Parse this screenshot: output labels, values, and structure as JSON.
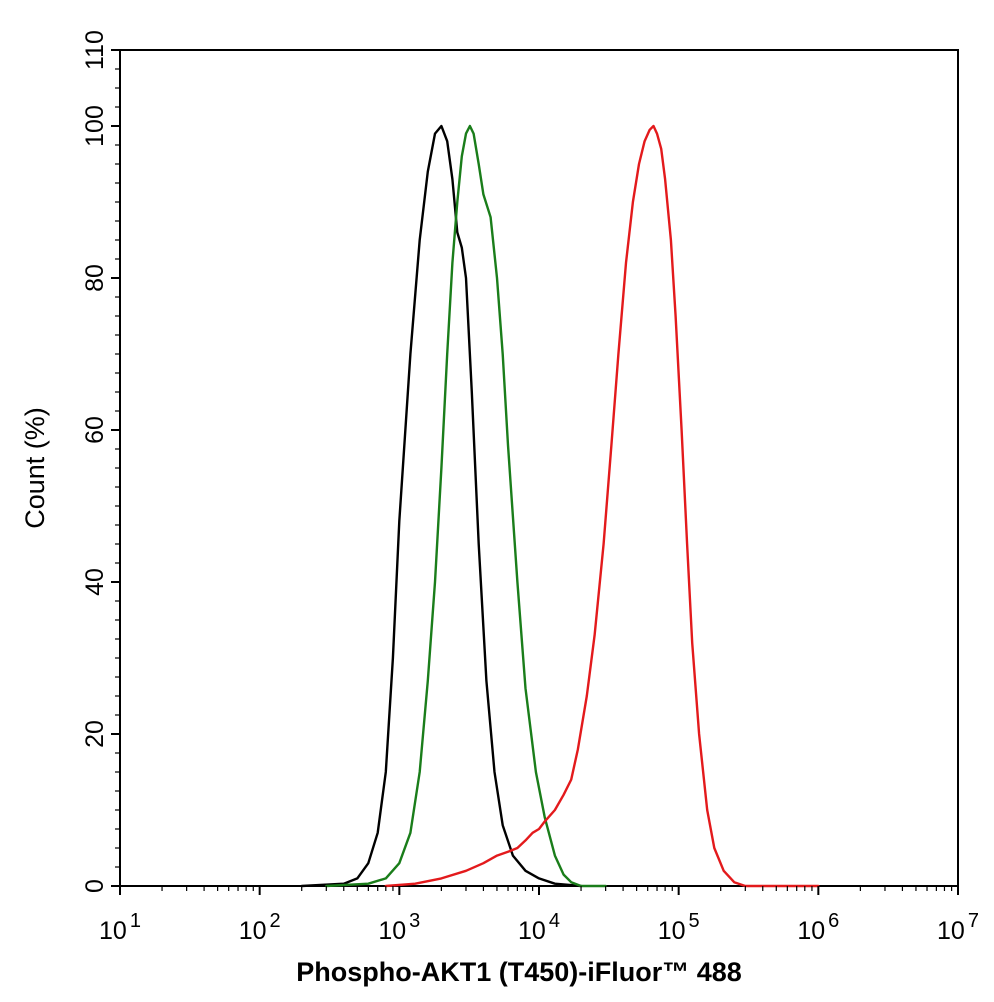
{
  "chart_data": {
    "type": "line",
    "xlabel": "Phospho-AKT1 (T450)-iFluor™ 488",
    "ylabel": "Count  (%)",
    "x_scale": "log",
    "xlim": [
      10,
      10000000
    ],
    "ylim": [
      0,
      110
    ],
    "x_ticks": [
      {
        "value": 10,
        "base": "10",
        "exp": "1"
      },
      {
        "value": 100,
        "base": "10",
        "exp": "2"
      },
      {
        "value": 1000,
        "base": "10",
        "exp": "3"
      },
      {
        "value": 10000,
        "base": "10",
        "exp": "4"
      },
      {
        "value": 100000,
        "base": "10",
        "exp": "5"
      },
      {
        "value": 1000000,
        "base": "10",
        "exp": "6"
      },
      {
        "value": 10000000,
        "base": "10",
        "exp": "7"
      }
    ],
    "y_ticks": [
      "0",
      "20",
      "40",
      "60",
      "80",
      "100",
      "110"
    ],
    "grid": false,
    "legend": "none",
    "series": [
      {
        "color": "#000000",
        "points": [
          [
            200,
            0
          ],
          [
            400,
            0.3
          ],
          [
            500,
            1
          ],
          [
            600,
            3
          ],
          [
            700,
            7
          ],
          [
            800,
            15
          ],
          [
            900,
            30
          ],
          [
            1000,
            48
          ],
          [
            1200,
            70
          ],
          [
            1400,
            85
          ],
          [
            1600,
            94
          ],
          [
            1800,
            99
          ],
          [
            2000,
            100
          ],
          [
            2200,
            98
          ],
          [
            2400,
            93
          ],
          [
            2600,
            86
          ],
          [
            2800,
            84
          ],
          [
            3000,
            80
          ],
          [
            3300,
            65
          ],
          [
            3700,
            45
          ],
          [
            4200,
            27
          ],
          [
            4800,
            15
          ],
          [
            5500,
            8
          ],
          [
            6500,
            4
          ],
          [
            8000,
            2
          ],
          [
            10000,
            1
          ],
          [
            13000,
            0.3
          ],
          [
            20000,
            0
          ]
        ]
      },
      {
        "color": "#1a7d1a",
        "points": [
          [
            300,
            0
          ],
          [
            600,
            0.3
          ],
          [
            800,
            1
          ],
          [
            1000,
            3
          ],
          [
            1200,
            7
          ],
          [
            1400,
            15
          ],
          [
            1600,
            27
          ],
          [
            1800,
            40
          ],
          [
            2000,
            55
          ],
          [
            2200,
            70
          ],
          [
            2400,
            82
          ],
          [
            2600,
            90
          ],
          [
            2800,
            96
          ],
          [
            3000,
            99
          ],
          [
            3200,
            100
          ],
          [
            3400,
            99
          ],
          [
            3700,
            95
          ],
          [
            4000,
            91
          ],
          [
            4500,
            88
          ],
          [
            5000,
            80
          ],
          [
            5500,
            70
          ],
          [
            6000,
            58
          ],
          [
            7000,
            40
          ],
          [
            8000,
            26
          ],
          [
            9500,
            15
          ],
          [
            11000,
            9
          ],
          [
            13000,
            4
          ],
          [
            15000,
            1.5
          ],
          [
            17000,
            0.5
          ],
          [
            20000,
            0
          ],
          [
            30000,
            0
          ]
        ]
      },
      {
        "color": "#e31a1c",
        "points": [
          [
            800,
            0
          ],
          [
            1300,
            0.3
          ],
          [
            2000,
            1
          ],
          [
            3000,
            2
          ],
          [
            4000,
            3
          ],
          [
            5000,
            4
          ],
          [
            6000,
            4.5
          ],
          [
            7000,
            5
          ],
          [
            8000,
            6
          ],
          [
            9000,
            7
          ],
          [
            10000,
            7.5
          ],
          [
            11000,
            8.5
          ],
          [
            13000,
            10
          ],
          [
            15000,
            12
          ],
          [
            17000,
            14
          ],
          [
            19000,
            18
          ],
          [
            22000,
            25
          ],
          [
            25000,
            33
          ],
          [
            29000,
            45
          ],
          [
            33000,
            58
          ],
          [
            37000,
            70
          ],
          [
            42000,
            82
          ],
          [
            47000,
            90
          ],
          [
            52000,
            95
          ],
          [
            57000,
            98
          ],
          [
            62000,
            99.5
          ],
          [
            66000,
            100
          ],
          [
            70000,
            99
          ],
          [
            75000,
            97
          ],
          [
            80000,
            93
          ],
          [
            88000,
            85
          ],
          [
            95000,
            75
          ],
          [
            105000,
            60
          ],
          [
            115000,
            45
          ],
          [
            125000,
            32
          ],
          [
            140000,
            20
          ],
          [
            160000,
            10
          ],
          [
            180000,
            5
          ],
          [
            210000,
            2
          ],
          [
            250000,
            0.5
          ],
          [
            300000,
            0
          ],
          [
            1000000,
            0
          ]
        ]
      }
    ]
  }
}
